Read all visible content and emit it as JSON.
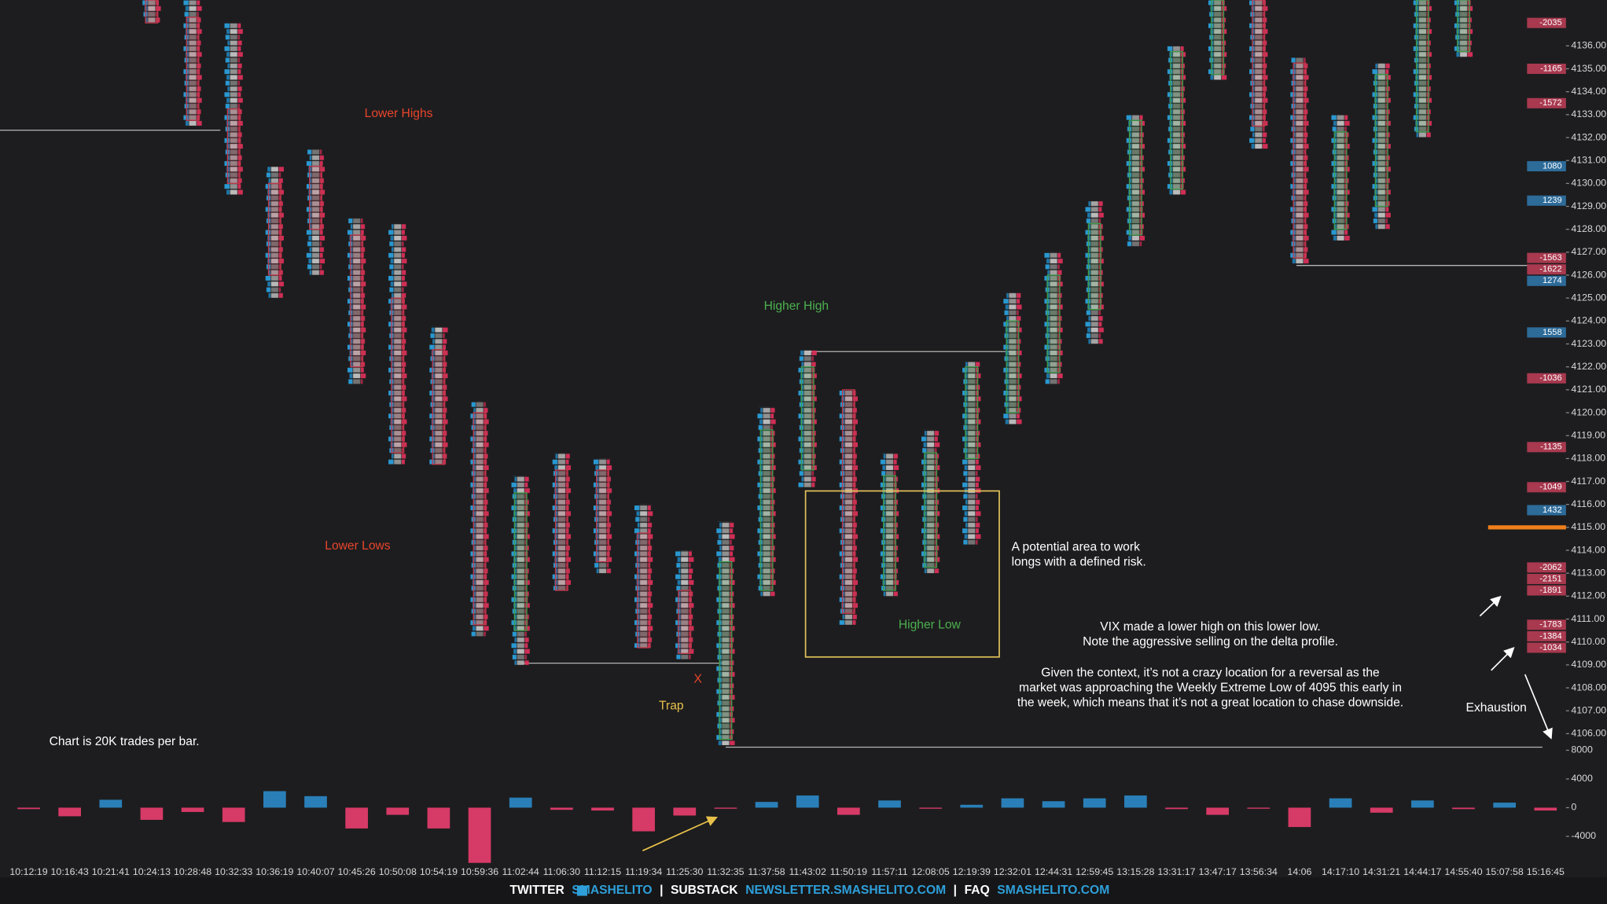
{
  "chart_data": [
    {
      "type": "candlestick",
      "open": [
        null,
        null,
        null,
        4138,
        4137.25,
        4133.25,
        4130,
        4130.75,
        4127.75,
        4125,
        4122.75,
        4120,
        4110.5,
        4117.5,
        4117.5,
        4114.75,
        4112.25,
        4105.75,
        4112.25,
        4117.5,
        4121,
        4112.25,
        4113.25,
        4118,
        4120,
        4121.75,
        4124.5,
        4127.75,
        4129.75,
        4134.75,
        4138,
        4135.25,
        4128,
        4129,
        4132.25,
        4135.75,
        null,
        null
      ],
      "high": [
        null,
        null,
        null,
        4139.5,
        4139,
        4137,
        4130.75,
        4131.5,
        4128.5,
        4128.25,
        4123.75,
        4120.5,
        4117.25,
        4118.25,
        4118,
        4116,
        4114,
        4115.25,
        4120.25,
        4122.75,
        4121,
        4118.25,
        4119.25,
        4122.25,
        4125.25,
        4127,
        4129.25,
        4133,
        4136,
        4139,
        4139,
        4135.5,
        4133,
        4135.25,
        4139,
        4139,
        null,
        null
      ],
      "low": [
        null,
        null,
        null,
        4137,
        4132.5,
        4129.5,
        4125,
        4126,
        4121.25,
        4117.75,
        4117.75,
        4110.25,
        4109,
        4112.25,
        4113,
        4109.75,
        4109.25,
        4105.5,
        4112,
        4116.75,
        4110.75,
        4112,
        4113,
        4114.25,
        4119.5,
        4121.25,
        4123,
        4127.25,
        4129.5,
        4134.5,
        4131.5,
        4126.5,
        4127.5,
        4128,
        4132,
        4135.5,
        null,
        null
      ],
      "close": [
        null,
        null,
        null,
        4137,
        4132.75,
        4130,
        4126,
        4128,
        4122,
        4118.25,
        4117.75,
        4110.75,
        4116.5,
        4112.25,
        4113.5,
        4109.75,
        4109.5,
        4113.5,
        4119.25,
        4122,
        4111.25,
        4117.25,
        4118.25,
        4122,
        4124,
        4126,
        4128.25,
        4132.75,
        4135.75,
        4138,
        4132.5,
        4126.75,
        4132.25,
        4134.75,
        4138,
        4138,
        null,
        null
      ],
      "up_color": "#3f9a4a",
      "down_color": "#c0394b",
      "ylim": [
        4105.3,
        4138
      ],
      "yticks": [
        {
          "value": 4106,
          "label": "4106.00"
        },
        {
          "value": 4107,
          "label": "4107.00"
        },
        {
          "value": 4108,
          "label": "4108.00"
        },
        {
          "value": 4109,
          "label": "4109.00"
        },
        {
          "value": 4110,
          "label": "4110.00"
        },
        {
          "value": 4111,
          "label": "4111.00"
        },
        {
          "value": 4112,
          "label": "4112.00"
        },
        {
          "value": 4113,
          "label": "4113.00"
        },
        {
          "value": 4114,
          "label": "4114.00"
        },
        {
          "value": 4115,
          "label": "4115.00"
        },
        {
          "value": 4116,
          "label": "4116.00"
        },
        {
          "value": 4117,
          "label": "4117.00"
        },
        {
          "value": 4118,
          "label": "4118.00"
        },
        {
          "value": 4119,
          "label": "4119.00"
        },
        {
          "value": 4120,
          "label": "4120.00"
        },
        {
          "value": 4121,
          "label": "4121.00"
        },
        {
          "value": 4122,
          "label": "4122.00"
        },
        {
          "value": 4123,
          "label": "4123.00"
        },
        {
          "value": 4124,
          "label": "4124.00"
        },
        {
          "value": 4125,
          "label": "4125.00"
        },
        {
          "value": 4126,
          "label": "4126.00"
        },
        {
          "value": 4127,
          "label": "4127.00"
        },
        {
          "value": 4128,
          "label": "4128.00"
        },
        {
          "value": 4129,
          "label": "4129.00"
        },
        {
          "value": 4130,
          "label": "4130.00"
        },
        {
          "value": 4131,
          "label": "4131.00"
        },
        {
          "value": 4132,
          "label": "4132.00"
        },
        {
          "value": 4133,
          "label": "4133.00"
        },
        {
          "value": 4134,
          "label": "4134.00"
        },
        {
          "value": 4135,
          "label": "4135.00"
        },
        {
          "value": 4136,
          "label": "4136.00"
        }
      ],
      "profile": {
        "prices": [
          4137,
          4135,
          4133.5,
          4130.75,
          4129.25,
          4126.75,
          4126.25,
          4125.75,
          4123.5,
          4121.5,
          4118.5,
          4116.75,
          4115.75,
          4113.25,
          4112.75,
          4112.25,
          4110.75,
          4110.25,
          4109.75
        ],
        "values": [
          -2035,
          -1165,
          -1572,
          1080,
          1239,
          -1563,
          -1622,
          1274,
          1558,
          -1036,
          -1135,
          -1049,
          1432,
          -2062,
          -2151,
          -1891,
          -1783,
          -1384,
          -1034
        ],
        "positive_color": "#2d6b99",
        "negative_color": "#a8394f"
      },
      "price_marker": 4115,
      "price_marker_color": "#f07f1a",
      "annotations": [
        {
          "lines": [
            "Lower Highs"
          ],
          "color": "#e8452c"
        },
        {
          "lines": [
            "Lower Lows"
          ],
          "color": "#e8452c"
        },
        {
          "lines": [
            "Higher High"
          ],
          "color": "#4cb04f"
        },
        {
          "lines": [
            "Higher Low"
          ],
          "color": "#4cb04f"
        },
        {
          "lines": [
            "X"
          ],
          "color": "#e8452c"
        },
        {
          "lines": [
            "Trap"
          ],
          "color": "#e8c14a"
        },
        {
          "lines": [
            "A potential area to work",
            "longs with a defined risk."
          ],
          "color": "#ffffff"
        },
        {
          "lines": [
            "Chart is 20K trades per bar."
          ],
          "color": "#ffffff"
        },
        {
          "lines": [
            "VIX made a lower high on this lower low.",
            "Note the aggressive selling on the delta profile."
          ],
          "color": "#ffffff"
        },
        {
          "lines": [
            "Given the context, it’s not a crazy location for a reversal as the",
            "market was approaching the Weekly Extreme Low of 4095 this early in",
            "the week, which means that it’s not a great location to chase downside."
          ],
          "color": "#ffffff"
        },
        {
          "lines": [
            "Exhaustion"
          ],
          "color": "#ffffff"
        }
      ]
    },
    {
      "type": "bar",
      "categories": [
        "10:12:19",
        "10:16:43",
        "10:21:41",
        "10:24:13",
        "10:28:48",
        "10:32:33",
        "10:36:19",
        "10:40:07",
        "10:45:26",
        "10:50:08",
        "10:54:19",
        "10:59:36",
        "11:02:44",
        "11:06:30",
        "11:12:15",
        "11:19:34",
        "11:25:30",
        "11:32:35",
        "11:37:58",
        "11:43:02",
        "11:50:19",
        "11:57:11",
        "12:08:05",
        "12:19:39",
        "12:32:01",
        "12:44:31",
        "12:59:45",
        "13:15:28",
        "13:31:17",
        "13:47:17",
        "13:56:34",
        "14:06",
        "14:17:10",
        "14:31:21",
        "14:44:17",
        "14:55:40",
        "15:07:58",
        "15:16:45"
      ],
      "values": [
        -200,
        -1200,
        1100,
        -1700,
        -600,
        -2000,
        2300,
        1600,
        -2900,
        -1000,
        -2900,
        -7700,
        1400,
        -300,
        -400,
        -3300,
        -1100,
        -150,
        800,
        1700,
        -1000,
        1000,
        -150,
        400,
        1300,
        900,
        1300,
        1700,
        -200,
        -1000,
        -150,
        -2700,
        1300,
        -700,
        1000,
        -200,
        700,
        -400
      ],
      "positive_color": "#2a7fb8",
      "negative_color": "#d63a66",
      "ylim": [
        -8000,
        8500
      ],
      "yticks": [
        8000,
        4000,
        0,
        -4000
      ]
    }
  ],
  "footer": {
    "twitter_label": "TWITTER",
    "twitter_handle": "SMASHELITO",
    "separator": "|",
    "substack_label": "SUBSTACK",
    "substack_url": "NEWSLETTER.SMASHELITO.COM",
    "faq_label": "FAQ",
    "faq_url": "SMASHELITO.COM"
  }
}
